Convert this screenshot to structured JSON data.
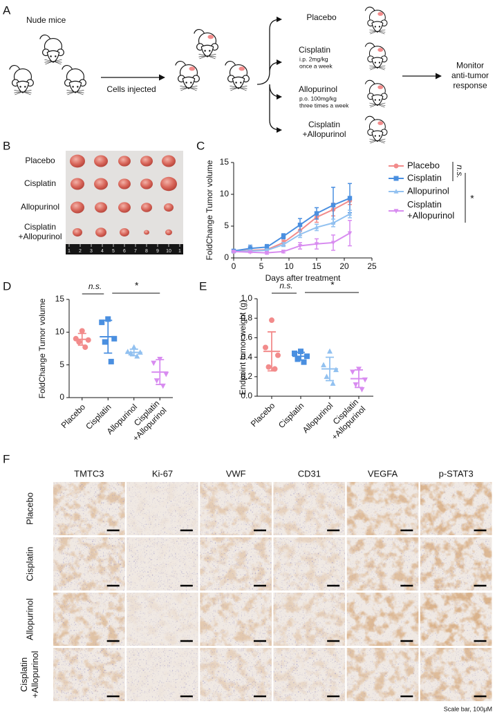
{
  "panel_labels": [
    "A",
    "B",
    "C",
    "D",
    "E",
    "F"
  ],
  "schematic": {
    "start_label": "Nude mice",
    "injection_label": "Cells injected",
    "arms": [
      {
        "name": "Placebo"
      },
      {
        "name": "Cisplatin",
        "dose": "i.p. 2mg/kg",
        "schedule": "once a week"
      },
      {
        "name": "Allopurinol",
        "dose": "p.o. 100mg/kg",
        "schedule": "three times a week"
      },
      {
        "name": "Cisplatin\n+Allopurinol"
      }
    ],
    "outcome": "Monitor\nanti-tumor\nresponse"
  },
  "photo": {
    "rows": [
      "Placebo",
      "Cisplatin",
      "Allopurinol",
      "Cisplatin\n+Allopurinol"
    ],
    "ruler": [
      "1",
      "2",
      "3",
      "4",
      "5",
      "6",
      "7",
      "8",
      "9",
      "10",
      "1"
    ]
  },
  "chart_data": [
    {
      "type": "line",
      "xlabel": "Days after treatment",
      "ylabel": "FoldChange Tumor volume",
      "x": [
        0,
        3,
        6,
        9,
        12,
        15,
        18,
        21
      ],
      "xlim": [
        0,
        25
      ],
      "xticks": [
        0,
        5,
        10,
        15,
        20,
        25
      ],
      "ylim": [
        0,
        15
      ],
      "yticks": [
        0,
        5,
        10,
        15
      ],
      "series": [
        {
          "name": "Placebo",
          "color": "#f28b8b",
          "marker": "circle",
          "values": [
            1.0,
            1.2,
            1.3,
            2.4,
            4.3,
            6.4,
            7.6,
            9.0
          ],
          "errors": [
            0.1,
            0.2,
            0.3,
            0.4,
            0.8,
            0.8,
            1.0,
            0.6
          ]
        },
        {
          "name": "Cisplatin",
          "color": "#4a8fe0",
          "marker": "square",
          "values": [
            1.1,
            1.5,
            1.7,
            3.4,
            5.2,
            7.0,
            8.3,
            9.4
          ],
          "errors": [
            0.2,
            0.5,
            0.4,
            0.4,
            1.0,
            0.9,
            2.8,
            2.3
          ]
        },
        {
          "name": "Allopurinol",
          "color": "#92c1f0",
          "marker": "triangle",
          "values": [
            1.0,
            1.1,
            1.2,
            2.1,
            3.7,
            4.8,
            5.5,
            6.9
          ],
          "errors": [
            0.1,
            0.2,
            0.2,
            0.3,
            0.5,
            0.5,
            0.6,
            0.6
          ]
        },
        {
          "name": "Cisplatin\n+Allopurinol",
          "color": "#d88cf0",
          "marker": "triangle-down",
          "values": [
            1.0,
            0.9,
            0.8,
            1.0,
            1.9,
            2.2,
            2.4,
            3.9
          ],
          "errors": [
            0.1,
            0.1,
            0.2,
            0.2,
            0.5,
            0.8,
            1.2,
            2.0
          ]
        }
      ],
      "annotations": [
        {
          "text": "n.s."
        },
        {
          "text": "*"
        }
      ]
    },
    {
      "type": "dot",
      "ylabel": "FoldChange Tumor volume",
      "ylim": [
        0,
        15
      ],
      "yticks": [
        0,
        5,
        10,
        15
      ],
      "groups": [
        {
          "name": "Placebo",
          "color": "#f28b8b",
          "marker": "circle",
          "values": [
            10.2,
            9.0,
            8.8,
            8.5,
            7.7
          ],
          "mean": 8.9,
          "sd": 0.9
        },
        {
          "name": "Cisplatin",
          "color": "#4a8fe0",
          "marker": "square",
          "values": [
            12.0,
            11.5,
            9.0,
            8.5,
            5.5
          ],
          "mean": 9.3,
          "sd": 2.5
        },
        {
          "name": "Allopurinol",
          "color": "#92c1f0",
          "marker": "triangle",
          "values": [
            7.7,
            7.0,
            6.9,
            6.8,
            6.3
          ],
          "mean": 6.9,
          "sd": 0.5
        },
        {
          "name": "Cisplatin\n+Allopurinol",
          "color": "#d88cf0",
          "marker": "triangle-down",
          "values": [
            5.9,
            5.3,
            3.6,
            2.6,
            1.8
          ],
          "mean": 3.9,
          "sd": 1.9
        }
      ],
      "annotations": [
        {
          "text": "n.s."
        },
        {
          "text": "*"
        }
      ]
    },
    {
      "type": "dot",
      "ylabel": "Endpoint tumor weight (g)",
      "ylim": [
        0,
        1
      ],
      "yticks": [
        {
          "value": 0,
          "label": "0.0"
        },
        0.2,
        0.4,
        0.6,
        0.8,
        {
          "value": 1,
          "label": "1.0"
        }
      ],
      "groups": [
        {
          "name": "Placebo",
          "color": "#f28b8b",
          "marker": "circle",
          "values": [
            0.78,
            0.5,
            0.42,
            0.3,
            0.28
          ],
          "mean": 0.46,
          "sd": 0.2
        },
        {
          "name": "Cisplatin",
          "color": "#4a8fe0",
          "marker": "square",
          "values": [
            0.46,
            0.44,
            0.41,
            0.38,
            0.35
          ],
          "mean": 0.41,
          "sd": 0.04
        },
        {
          "name": "Allopurinol",
          "color": "#92c1f0",
          "marker": "triangle",
          "values": [
            0.46,
            0.32,
            0.27,
            0.2,
            0.13
          ],
          "mean": 0.28,
          "sd": 0.12
        },
        {
          "name": "Cisplatin\n+Allopurinol",
          "color": "#d88cf0",
          "marker": "triangle-down",
          "values": [
            0.28,
            0.25,
            0.17,
            0.12,
            0.07
          ],
          "mean": 0.18,
          "sd": 0.09
        }
      ],
      "annotations": [
        {
          "text": "n.s."
        },
        {
          "text": "*"
        }
      ]
    }
  ],
  "histology": {
    "columns": [
      "TMTC3",
      "Ki-67",
      "VWF",
      "CD31",
      "VEGFA",
      "p-STAT3"
    ],
    "rows": [
      "Placebo",
      "Cisplatin",
      "Allopurinol",
      "Cisplatin\n+Allopurinol"
    ],
    "scale_note": "Scale bar, 100μM"
  }
}
